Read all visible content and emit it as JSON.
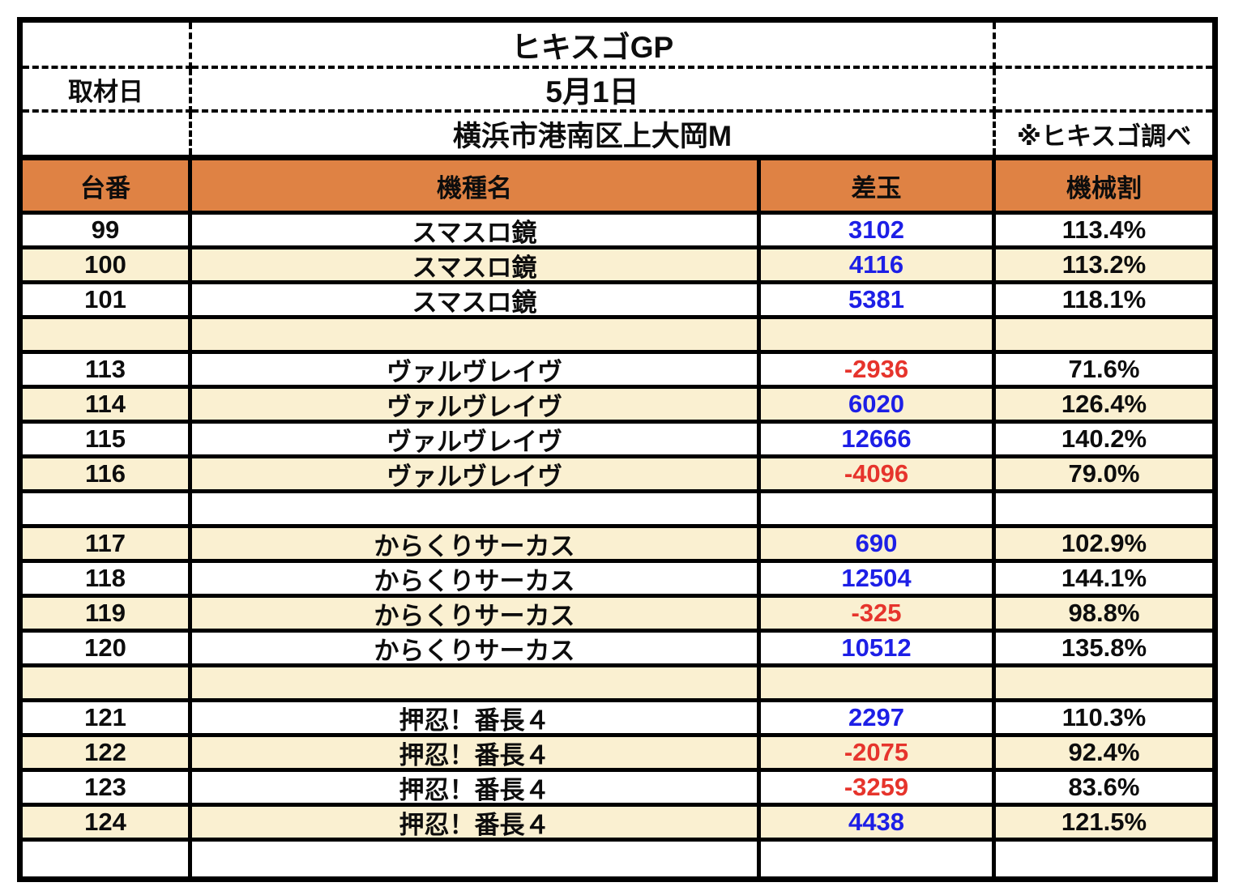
{
  "header": {
    "title": "ヒキスゴGP",
    "date_label": "取材日",
    "date_value": "5月1日",
    "venue": "横浜市港南区上大岡M",
    "note": "※ヒキスゴ調べ"
  },
  "table": {
    "columns": [
      "台番",
      "機種名",
      "差玉",
      "機械割"
    ],
    "rows": [
      {
        "dai": "99",
        "machine": "スマスロ鏡",
        "sadama": "3102",
        "rate": "113.4%"
      },
      {
        "dai": "100",
        "machine": "スマスロ鏡",
        "sadama": "4116",
        "rate": "113.2%"
      },
      {
        "dai": "101",
        "machine": "スマスロ鏡",
        "sadama": "5381",
        "rate": "118.1%"
      },
      {
        "dai": "",
        "machine": "",
        "sadama": "",
        "rate": ""
      },
      {
        "dai": "113",
        "machine": "ヴァルヴレイヴ",
        "sadama": "-2936",
        "rate": "71.6%"
      },
      {
        "dai": "114",
        "machine": "ヴァルヴレイヴ",
        "sadama": "6020",
        "rate": "126.4%"
      },
      {
        "dai": "115",
        "machine": "ヴァルヴレイヴ",
        "sadama": "12666",
        "rate": "140.2%"
      },
      {
        "dai": "116",
        "machine": "ヴァルヴレイヴ",
        "sadama": "-4096",
        "rate": "79.0%"
      },
      {
        "dai": "",
        "machine": "",
        "sadama": "",
        "rate": ""
      },
      {
        "dai": "117",
        "machine": "からくりサーカス",
        "sadama": "690",
        "rate": "102.9%"
      },
      {
        "dai": "118",
        "machine": "からくりサーカス",
        "sadama": "12504",
        "rate": "144.1%"
      },
      {
        "dai": "119",
        "machine": "からくりサーカス",
        "sadama": "-325",
        "rate": "98.8%"
      },
      {
        "dai": "120",
        "machine": "からくりサーカス",
        "sadama": "10512",
        "rate": "135.8%"
      },
      {
        "dai": "",
        "machine": "",
        "sadama": "",
        "rate": ""
      },
      {
        "dai": "121",
        "machine": "押忍！番長４",
        "sadama": "2297",
        "rate": "110.3%"
      },
      {
        "dai": "122",
        "machine": "押忍！番長４",
        "sadama": "-2075",
        "rate": "92.4%"
      },
      {
        "dai": "123",
        "machine": "押忍！番長４",
        "sadama": "-3259",
        "rate": "83.6%"
      },
      {
        "dai": "124",
        "machine": "押忍！番長４",
        "sadama": "4438",
        "rate": "121.5%"
      },
      {
        "dai": "",
        "machine": "",
        "sadama": "",
        "rate": ""
      }
    ]
  },
  "colors": {
    "header_bg": "#DF8244",
    "row_alt_bg": "#FAF0D1",
    "positive_value": "#1D1FE6",
    "negative_value": "#E6342C",
    "border": "#000000"
  }
}
